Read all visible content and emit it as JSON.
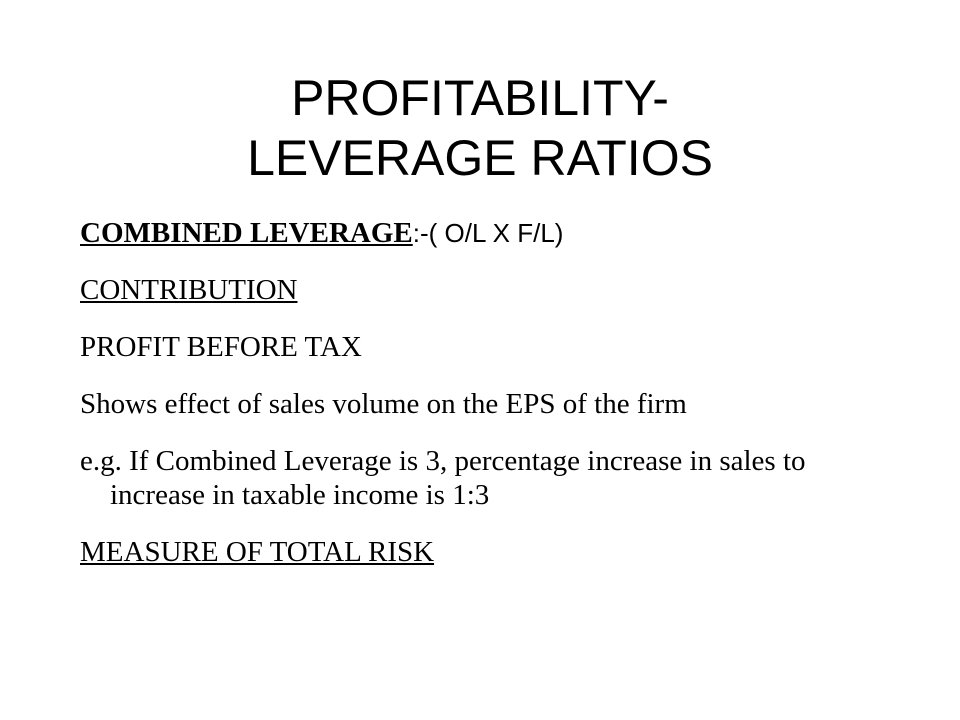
{
  "slide": {
    "title_line1": "PROFITABILITY-",
    "title_line2": "LEVERAGE RATIOS",
    "items": [
      {
        "label": "COMBINED LEVERAGE",
        "suffix": ":-( O/L  X  F/L)"
      },
      {
        "text": "CONTRIBUTION"
      },
      {
        "text": "PROFIT BEFORE TAX"
      },
      {
        "text": "Shows effect of sales volume on the EPS of the firm"
      },
      {
        "text": "e.g. If Combined Leverage is 3, percentage increase in sales to  increase in  taxable income is 1:3"
      },
      {
        "text": "MEASURE OF TOTAL RISK"
      }
    ]
  }
}
